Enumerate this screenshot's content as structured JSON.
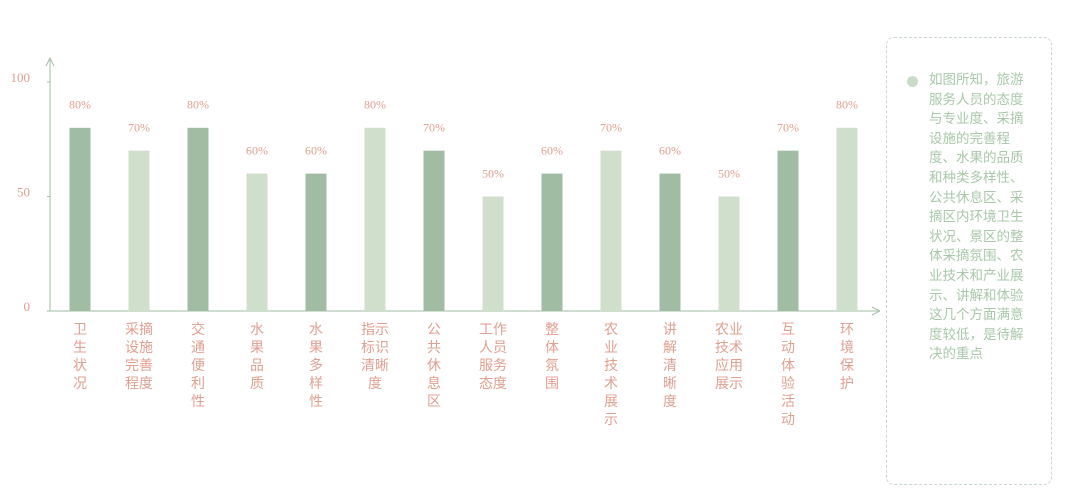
{
  "chart_data": {
    "type": "bar",
    "categories": [
      "卫生状况",
      "采摘设施完善程度",
      "交通便利性",
      "水果品质",
      "水果多样性",
      "指示标识清晰度",
      "公共休息区",
      "工作人员服务态度",
      "整体氛围",
      "农业技术展示",
      "讲解清晰度",
      "农业技术应用展示",
      "互动体验活动",
      "环境保护"
    ],
    "values": [
      80,
      70,
      80,
      60,
      60,
      80,
      70,
      50,
      60,
      70,
      60,
      50,
      70,
      80
    ],
    "value_labels": [
      "80%",
      "70%",
      "80%",
      "60%",
      "60%",
      "80%",
      "70%",
      "50%",
      "60%",
      "70%",
      "60%",
      "50%",
      "70%",
      "80%"
    ],
    "colors": [
      "#a0bda3",
      "#d0dfcb",
      "#a0bda3",
      "#d0dfcb",
      "#a0bda3",
      "#d0dfcb",
      "#a0bda3",
      "#d0dfcb",
      "#a0bda3",
      "#d0dfcb",
      "#a0bda3",
      "#d0dfcb",
      "#a0bda3",
      "#d0dfcb"
    ],
    "ylim": [
      0,
      100
    ],
    "yticks": [
      0,
      50,
      100
    ],
    "grid": false,
    "annotation": "如图所知，旅游服务人员的态度与专业度、采摘设施的完善程度、水果的品质和种类多样性、公共休息区、采摘区内环境卫生状况、景区的整体采摘氛围、农业技术和产业展示、讲解和体验这几个方面满意度较低，是待解决的重点"
  }
}
